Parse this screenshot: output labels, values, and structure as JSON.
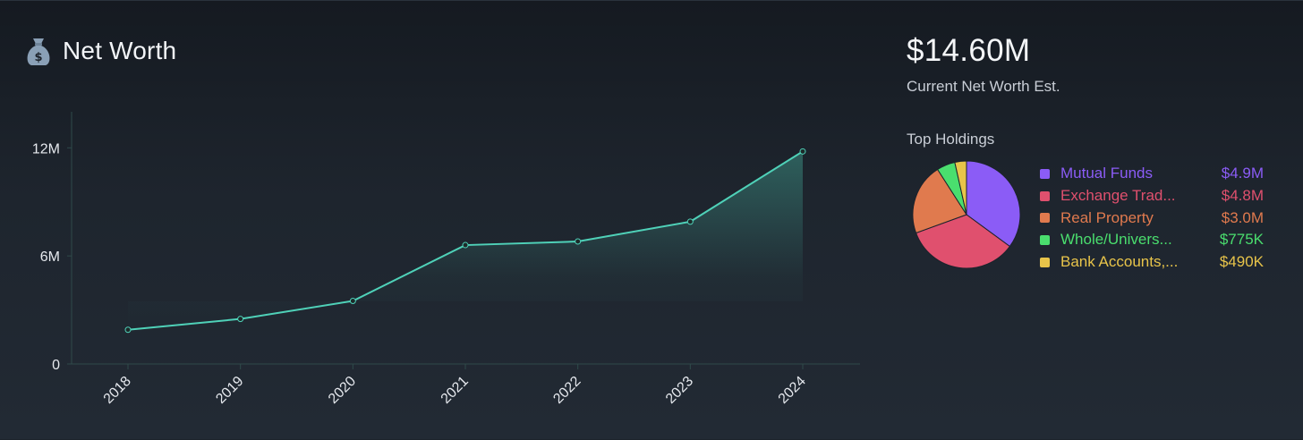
{
  "header": {
    "title": "Net Worth",
    "icon": "money-bag-icon"
  },
  "summary": {
    "current_value": "$14.60M",
    "current_label": "Current Net Worth Est."
  },
  "holdings": {
    "title": "Top Holdings",
    "items": [
      {
        "name": "Mutual Funds",
        "value_label": "$4.9M",
        "value": 4.9,
        "color": "#8b5cf6"
      },
      {
        "name": "Exchange Trad...",
        "value_label": "$4.8M",
        "value": 4.8,
        "color": "#e0506e"
      },
      {
        "name": "Real Property",
        "value_label": "$3.0M",
        "value": 3.0,
        "color": "#e07a4e"
      },
      {
        "name": "Whole/Univers...",
        "value_label": "$775K",
        "value": 0.775,
        "color": "#4ade6e"
      },
      {
        "name": "Bank Accounts,...",
        "value_label": "$490K",
        "value": 0.49,
        "color": "#e8c44a"
      }
    ]
  },
  "chart_data": [
    {
      "type": "area",
      "title": "Net Worth",
      "x": [
        "2018",
        "2019",
        "2020",
        "2021",
        "2022",
        "2023",
        "2024"
      ],
      "series": [
        {
          "values": [
            1.9,
            2.5,
            3.5,
            6.6,
            6.8,
            7.9,
            11.8
          ]
        }
      ],
      "yticks": [
        0,
        6,
        12
      ],
      "ytick_labels": [
        "0",
        "6M",
        "12M"
      ],
      "ylim": [
        0,
        14
      ],
      "line_color": "#4fd1b8",
      "grid": false,
      "xlabel": "",
      "ylabel": ""
    },
    {
      "type": "pie",
      "title": "Top Holdings",
      "labels": [
        "Mutual Funds",
        "Exchange Trad...",
        "Real Property",
        "Whole/Univers...",
        "Bank Accounts,..."
      ],
      "values": [
        4.9,
        4.8,
        3.0,
        0.775,
        0.49
      ]
    }
  ]
}
